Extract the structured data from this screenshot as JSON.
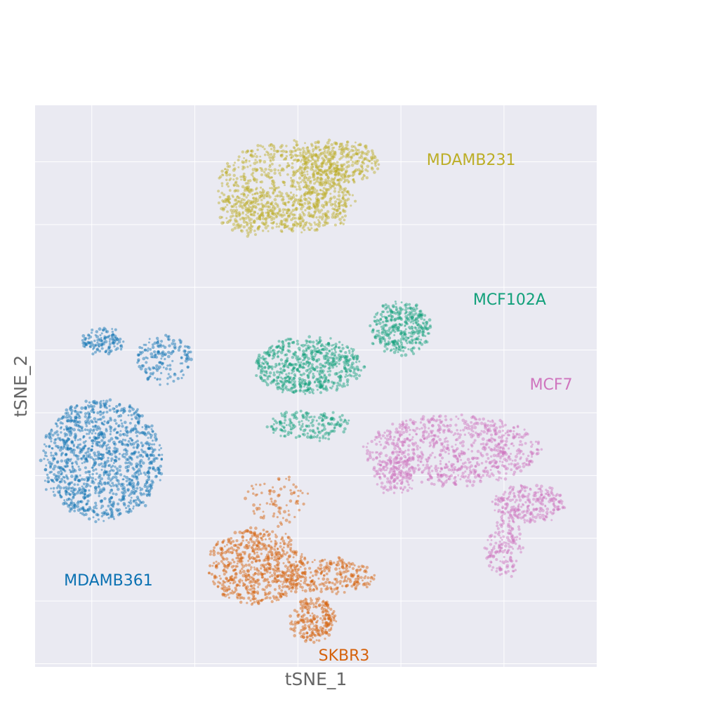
{
  "chart_data": {
    "type": "scatter",
    "xlabel": "tSNE_1",
    "ylabel": "tSNE_2",
    "xlim": [
      -2.7,
      2.75
    ],
    "ylim": [
      -4.05,
      4.9
    ],
    "x_gridlines": [
      -2.15,
      -1.15,
      -0.15,
      0.85,
      1.85
    ],
    "y_gridlines": [
      -4.0,
      -3.0,
      -2.0,
      -1.0,
      0.0,
      1.0,
      2.0,
      3.0,
      4.0,
      5.0
    ],
    "grid": true,
    "background": "#eaeaf2",
    "point_opacity": 0.45,
    "series": [
      {
        "name": "MDAMB231",
        "color": "#bcae27",
        "label_position": {
          "x": 1.1,
          "y": 3.95
        },
        "blobs": [
          {
            "cx": -0.27,
            "cy": 3.6,
            "rx": 0.65,
            "ry": 0.72,
            "n": 750
          },
          {
            "cx": 0.22,
            "cy": 4.0,
            "rx": 0.4,
            "ry": 0.35,
            "n": 320
          },
          {
            "cx": 0.05,
            "cy": 3.3,
            "rx": 0.35,
            "ry": 0.4,
            "n": 180
          },
          {
            "cx": -0.65,
            "cy": 3.2,
            "rx": 0.3,
            "ry": 0.35,
            "n": 150
          }
        ]
      },
      {
        "name": "MCF102A",
        "color": "#11a07a",
        "label_position": {
          "x": 1.55,
          "y": 1.72
        },
        "blobs": [
          {
            "cx": -0.05,
            "cy": 0.75,
            "rx": 0.52,
            "ry": 0.45,
            "n": 650
          },
          {
            "cx": 0.85,
            "cy": 1.35,
            "rx": 0.28,
            "ry": 0.42,
            "n": 350
          },
          {
            "cx": -0.05,
            "cy": -0.2,
            "rx": 0.4,
            "ry": 0.22,
            "n": 180
          }
        ]
      },
      {
        "name": "MCF7",
        "color": "#cf75be",
        "label_position": {
          "x": 2.1,
          "y": 0.37
        },
        "blobs": [
          {
            "cx": 1.35,
            "cy": -0.6,
            "rx": 0.85,
            "ry": 0.55,
            "n": 850
          },
          {
            "cx": 2.1,
            "cy": -1.45,
            "rx": 0.35,
            "ry": 0.3,
            "n": 260
          },
          {
            "cx": 1.85,
            "cy": -2.15,
            "rx": 0.18,
            "ry": 0.45,
            "n": 150
          },
          {
            "cx": 0.8,
            "cy": -1.0,
            "rx": 0.2,
            "ry": 0.3,
            "n": 120
          }
        ]
      },
      {
        "name": "MDAMB361",
        "color": "#0a71b2",
        "label_position": {
          "x": -2.42,
          "y": -2.75
        },
        "blobs": [
          {
            "cx": -2.05,
            "cy": -0.75,
            "rx": 0.58,
            "ry": 0.95,
            "n": 1200
          },
          {
            "cx": -2.05,
            "cy": 1.15,
            "rx": 0.2,
            "ry": 0.2,
            "n": 120
          },
          {
            "cx": -1.45,
            "cy": 0.85,
            "rx": 0.28,
            "ry": 0.38,
            "n": 160
          }
        ]
      },
      {
        "name": "SKBR3",
        "color": "#d5620c",
        "label_position": {
          "x": 0.05,
          "y": -3.95
        },
        "blobs": [
          {
            "cx": -0.55,
            "cy": -2.45,
            "rx": 0.48,
            "ry": 0.6,
            "n": 650
          },
          {
            "cx": 0.15,
            "cy": -2.6,
            "rx": 0.45,
            "ry": 0.25,
            "n": 250
          },
          {
            "cx": 0.0,
            "cy": -3.3,
            "rx": 0.22,
            "ry": 0.35,
            "n": 230
          },
          {
            "cx": -0.35,
            "cy": -1.4,
            "rx": 0.3,
            "ry": 0.4,
            "n": 80
          }
        ]
      }
    ]
  }
}
